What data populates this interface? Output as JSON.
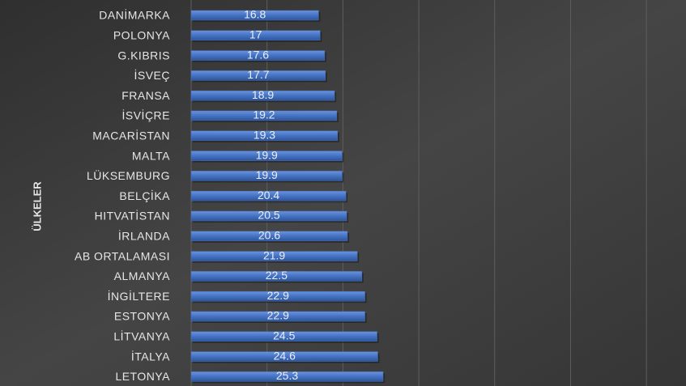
{
  "chart_data": {
    "type": "bar",
    "orientation": "horizontal",
    "y_axis_label": "ÜLKELER",
    "categories": [
      "DANİMARKA",
      "POLONYA",
      "G.KIBRIS",
      "İSVEÇ",
      "FRANSA",
      "İSVİÇRE",
      "MACARİSTAN",
      "MALTA",
      "LÜKSEMBURG",
      "BELÇİKA",
      "HITVATİSTAN",
      "İRLANDA",
      "AB ORTALAMASI",
      "ALMANYA",
      "İNGİLTERE",
      "ESTONYA",
      "LİTVANYA",
      "İTALYA",
      "LETONYA"
    ],
    "values": [
      16.8,
      17,
      17.6,
      17.7,
      18.9,
      19.2,
      19.3,
      19.9,
      19.9,
      20.4,
      20.5,
      20.6,
      21.9,
      22.5,
      22.9,
      22.9,
      24.5,
      24.6,
      25.3
    ],
    "color": "#4472c4",
    "xlim": [
      0,
      65
    ],
    "xticks": [
      0,
      10,
      20,
      30,
      40,
      50,
      60
    ],
    "grid": true
  }
}
